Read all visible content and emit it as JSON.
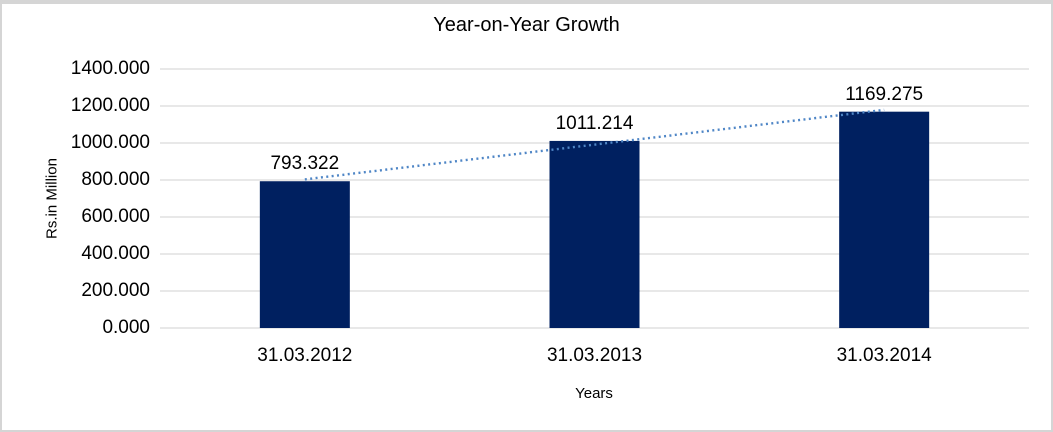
{
  "chart_data": {
    "type": "bar",
    "title": "Year-on-Year Growth",
    "categories": [
      "31.03.2012",
      "31.03.2013",
      "31.03.2014"
    ],
    "values": [
      793.322,
      1011.214,
      1169.275
    ],
    "data_labels": [
      "793.322",
      "1011.214",
      "1169.275"
    ],
    "xlabel": "Years",
    "ylabel": "Rs.in Million",
    "ylim": [
      0,
      1400
    ],
    "ytick_step": 200,
    "ytick_labels": [
      "0.000",
      "200.000",
      "400.000",
      "600.000",
      "800.000",
      "1000.000",
      "1200.000",
      "1400.000"
    ],
    "grid": true,
    "legend": "none",
    "trendline": {
      "type": "linear",
      "style": "dotted"
    },
    "colors": {
      "bar": "#002060",
      "trendline": "#4f86c6",
      "gridline": "#d9d9d9",
      "axis_line": "#d9d9d9",
      "text": "#000000",
      "panel_border": "#d5d5d5",
      "background": "#ffffff"
    }
  }
}
